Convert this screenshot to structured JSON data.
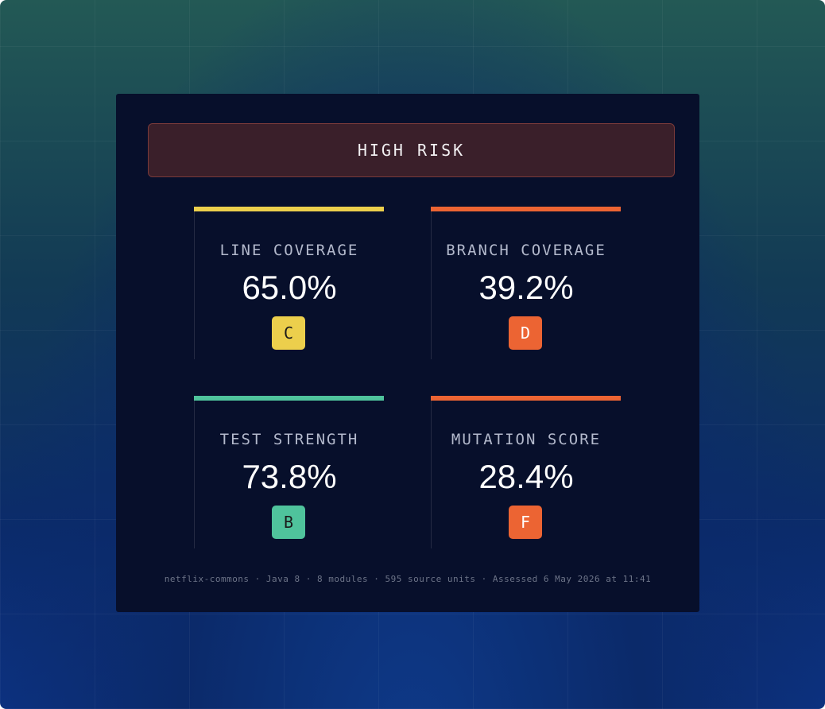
{
  "banner": {
    "text": "HIGH RISK"
  },
  "metrics": [
    {
      "label": "LINE COVERAGE",
      "value": "65.0%",
      "grade": "C",
      "color": "#eccf4c"
    },
    {
      "label": "BRANCH COVERAGE",
      "value": "39.2%",
      "grade": "D",
      "color": "#ec6433"
    },
    {
      "label": "TEST STRENGTH",
      "value": "73.8%",
      "grade": "B",
      "color": "#4fc39c"
    },
    {
      "label": "MUTATION SCORE",
      "value": "28.4%",
      "grade": "F",
      "color": "#ec6433"
    }
  ],
  "footer": {
    "text": "netflix-commons · Java 8 · 8 modules · 595 source units · Assessed 6 May 2026 at 11:41"
  }
}
